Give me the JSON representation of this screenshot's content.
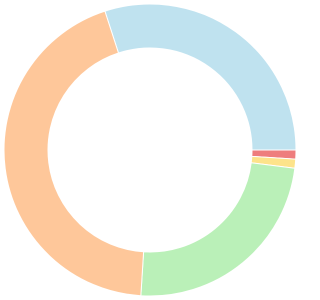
{
  "chart_data": {
    "type": "pie",
    "values": [
      30,
      1,
      1,
      24,
      44
    ],
    "colors": [
      "#bfe2ef",
      "#ee7d7d",
      "#fde38a",
      "#baf0b8",
      "#fec79a"
    ]
  }
}
